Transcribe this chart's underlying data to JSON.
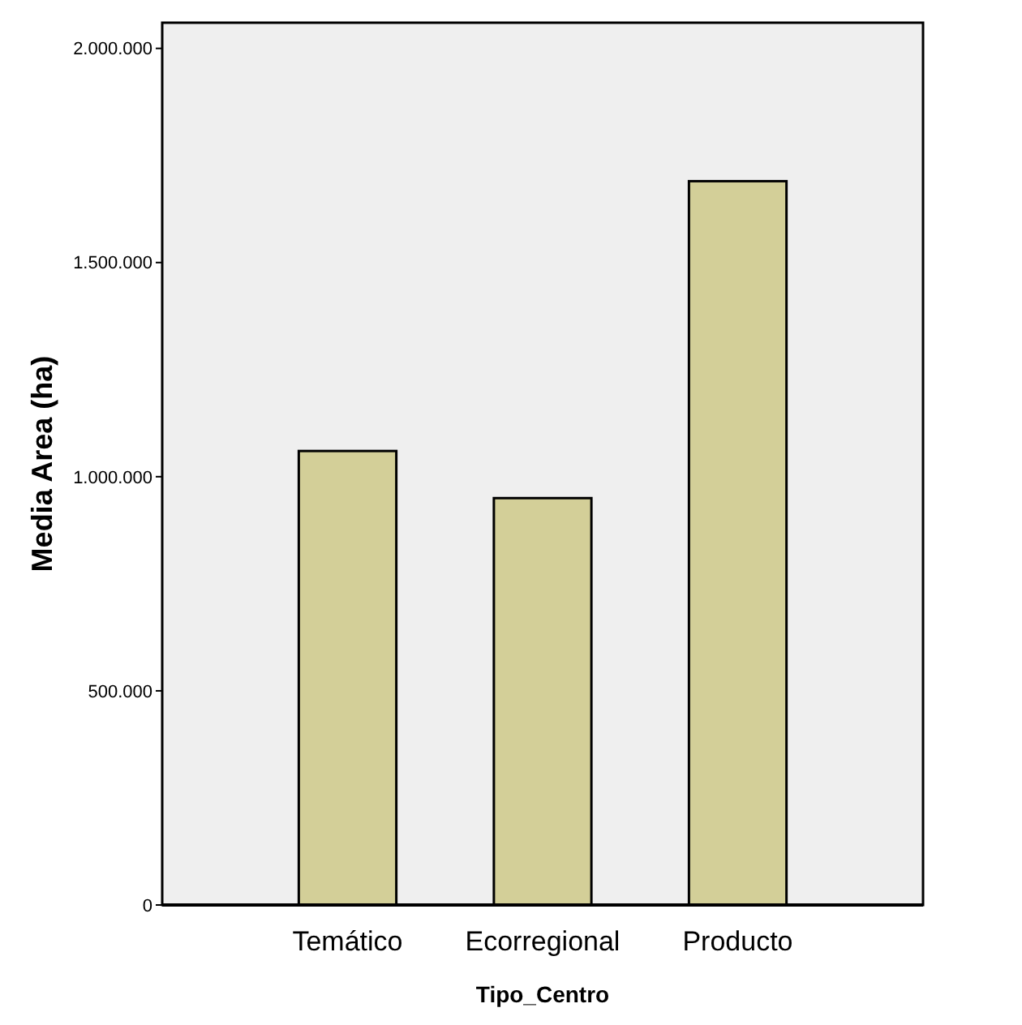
{
  "chart_data": {
    "type": "bar",
    "xlabel": "Tipo_Centro",
    "ylabel": "Media Area (ha)",
    "categories": [
      "Temático",
      "Ecorregional",
      "Producto"
    ],
    "values": [
      1060000,
      950000,
      1690000
    ],
    "color": "#d3cf98",
    "ylim": [
      0,
      2060000
    ],
    "yticks": [
      {
        "value": 0,
        "label": "0"
      },
      {
        "value": 500000,
        "label": "500.000"
      },
      {
        "value": 1000000,
        "label": "1.000.000"
      },
      {
        "value": 1500000,
        "label": "1.500.000"
      },
      {
        "value": 2000000,
        "label": "2.000.000"
      }
    ],
    "grid": false
  }
}
